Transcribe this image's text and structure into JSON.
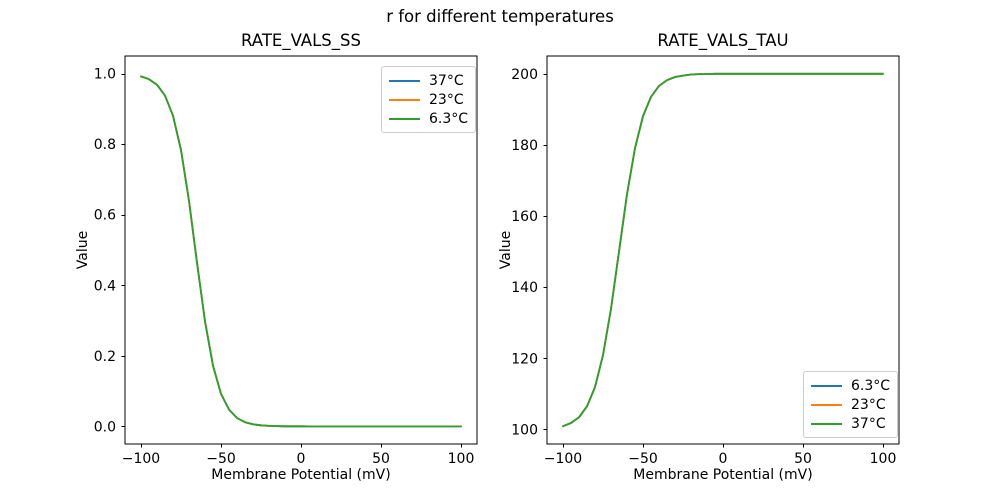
{
  "figure": {
    "suptitle": "r for different temperatures",
    "background_color": "#ffffff",
    "text_color": "#000000"
  },
  "chart_data": [
    {
      "type": "line",
      "title": "RATE_VALS_SS",
      "xlabel": "Membrane Potential (mV)",
      "ylabel": "Value",
      "xlim": [
        -110,
        110
      ],
      "ylim": [
        -0.05,
        1.05
      ],
      "grid": false,
      "legend_position": "upper-right",
      "xticks": [
        -100,
        -50,
        0,
        50,
        100
      ],
      "xtick_labels": [
        "−100",
        "−50",
        "0",
        "50",
        "100"
      ],
      "yticks": [
        0.0,
        0.2,
        0.4,
        0.6,
        0.8,
        1.0
      ],
      "ytick_labels": [
        "0.0",
        "0.2",
        "0.4",
        "0.6",
        "0.8",
        "1.0"
      ],
      "note": "All three temperature curves overlap exactly; only the last-plotted (green) line is visible.",
      "x": [
        -100,
        -95,
        -90,
        -85,
        -80,
        -75,
        -70,
        -65,
        -60,
        -55,
        -50,
        -45,
        -40,
        -35,
        -30,
        -25,
        -20,
        -15,
        -10,
        -5,
        0,
        5,
        10,
        15,
        20,
        25,
        30,
        35,
        40,
        45,
        50,
        55,
        60,
        65,
        70,
        75,
        80,
        85,
        90,
        95,
        100
      ],
      "series": [
        {
          "name": "37°C",
          "color": "#1f77b4",
          "values": [
            0.9923,
            0.9843,
            0.9686,
            0.9378,
            0.8808,
            0.7834,
            0.6391,
            0.4643,
            0.2979,
            0.172,
            0.0923,
            0.0474,
            0.0238,
            0.0118,
            0.0058,
            0.0029,
            0.0014,
            0.0007,
            0.0003,
            0.0002,
            0.0001,
            0.0,
            0.0,
            0.0,
            0.0,
            0.0,
            0.0,
            0.0,
            0.0,
            0.0,
            0.0,
            0.0,
            0.0,
            0.0,
            0.0,
            0.0,
            0.0,
            0.0,
            0.0,
            0.0,
            0.0
          ]
        },
        {
          "name": "23°C",
          "color": "#ff7f0e",
          "values": [
            0.9923,
            0.9843,
            0.9686,
            0.9378,
            0.8808,
            0.7834,
            0.6391,
            0.4643,
            0.2979,
            0.172,
            0.0923,
            0.0474,
            0.0238,
            0.0118,
            0.0058,
            0.0029,
            0.0014,
            0.0007,
            0.0003,
            0.0002,
            0.0001,
            0.0,
            0.0,
            0.0,
            0.0,
            0.0,
            0.0,
            0.0,
            0.0,
            0.0,
            0.0,
            0.0,
            0.0,
            0.0,
            0.0,
            0.0,
            0.0,
            0.0,
            0.0,
            0.0,
            0.0
          ]
        },
        {
          "name": "6.3°C",
          "color": "#2ca02c",
          "values": [
            0.9923,
            0.9843,
            0.9686,
            0.9378,
            0.8808,
            0.7834,
            0.6391,
            0.4643,
            0.2979,
            0.172,
            0.0923,
            0.0474,
            0.0238,
            0.0118,
            0.0058,
            0.0029,
            0.0014,
            0.0007,
            0.0003,
            0.0002,
            0.0001,
            0.0,
            0.0,
            0.0,
            0.0,
            0.0,
            0.0,
            0.0,
            0.0,
            0.0,
            0.0,
            0.0,
            0.0,
            0.0,
            0.0,
            0.0,
            0.0,
            0.0,
            0.0,
            0.0,
            0.0
          ]
        }
      ]
    },
    {
      "type": "line",
      "title": "RATE_VALS_TAU",
      "xlabel": "Membrane Potential (mV)",
      "ylabel": "Value",
      "xlim": [
        -110,
        110
      ],
      "ylim": [
        95.9,
        205.0
      ],
      "grid": false,
      "legend_position": "lower-right",
      "xticks": [
        -100,
        -50,
        0,
        50,
        100
      ],
      "xtick_labels": [
        "−100",
        "−50",
        "0",
        "50",
        "100"
      ],
      "yticks": [
        100,
        120,
        140,
        160,
        180,
        200
      ],
      "ytick_labels": [
        "100",
        "120",
        "140",
        "160",
        "180",
        "200"
      ],
      "note": "All three temperature curves overlap exactly; only the last-plotted (green) line is visible.",
      "x": [
        -100,
        -95,
        -90,
        -85,
        -80,
        -75,
        -70,
        -65,
        -60,
        -55,
        -50,
        -45,
        -40,
        -35,
        -30,
        -25,
        -20,
        -15,
        -10,
        -5,
        0,
        5,
        10,
        15,
        20,
        25,
        30,
        35,
        40,
        45,
        50,
        55,
        60,
        65,
        70,
        75,
        80,
        85,
        90,
        95,
        100
      ],
      "series": [
        {
          "name": "6.3°C",
          "color": "#1f77b4",
          "values": [
            100.9,
            101.8,
            103.4,
            106.5,
            111.9,
            120.9,
            133.9,
            150.0,
            166.1,
            179.1,
            188.1,
            193.5,
            196.6,
            198.2,
            199.1,
            199.5,
            199.8,
            199.9,
            199.9,
            200.0,
            200.0,
            200.0,
            200.0,
            200.0,
            200.0,
            200.0,
            200.0,
            200.0,
            200.0,
            200.0,
            200.0,
            200.0,
            200.0,
            200.0,
            200.0,
            200.0,
            200.0,
            200.0,
            200.0,
            200.0,
            200.0
          ]
        },
        {
          "name": "23°C",
          "color": "#ff7f0e",
          "values": [
            100.9,
            101.8,
            103.4,
            106.5,
            111.9,
            120.9,
            133.9,
            150.0,
            166.1,
            179.1,
            188.1,
            193.5,
            196.6,
            198.2,
            199.1,
            199.5,
            199.8,
            199.9,
            199.9,
            200.0,
            200.0,
            200.0,
            200.0,
            200.0,
            200.0,
            200.0,
            200.0,
            200.0,
            200.0,
            200.0,
            200.0,
            200.0,
            200.0,
            200.0,
            200.0,
            200.0,
            200.0,
            200.0,
            200.0,
            200.0,
            200.0
          ]
        },
        {
          "name": "37°C",
          "color": "#2ca02c",
          "values": [
            100.9,
            101.8,
            103.4,
            106.5,
            111.9,
            120.9,
            133.9,
            150.0,
            166.1,
            179.1,
            188.1,
            193.5,
            196.6,
            198.2,
            199.1,
            199.5,
            199.8,
            199.9,
            199.9,
            200.0,
            200.0,
            200.0,
            200.0,
            200.0,
            200.0,
            200.0,
            200.0,
            200.0,
            200.0,
            200.0,
            200.0,
            200.0,
            200.0,
            200.0,
            200.0,
            200.0,
            200.0,
            200.0,
            200.0,
            200.0,
            200.0
          ]
        }
      ]
    }
  ]
}
